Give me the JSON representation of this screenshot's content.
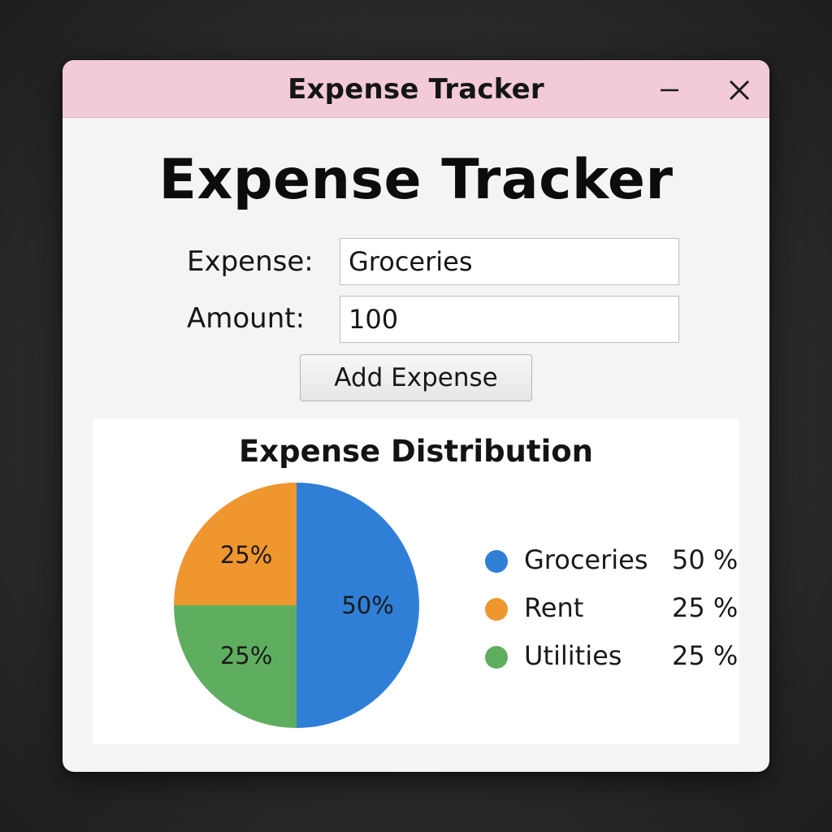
{
  "window": {
    "title": "Expense Tracker",
    "titlebar_color": "#f2cad8",
    "controls": [
      "minimize-icon",
      "close-icon"
    ]
  },
  "main": {
    "heading": "Expense Tracker",
    "expense_label": "Expense:",
    "expense_value": "Groceries",
    "amount_label": "Amount:",
    "amount_value": "100",
    "add_button_label": "Add Expense"
  },
  "chart_data": {
    "type": "pie",
    "title": "Expense Distribution",
    "categories": [
      "Groceries",
      "Rent",
      "Utilities"
    ],
    "values": [
      50,
      25,
      25
    ],
    "slice_labels": [
      "50%",
      "25%",
      "25%"
    ],
    "legend_values": [
      "50 %",
      "25 %",
      "25 %"
    ],
    "colors": [
      "#2f7fd6",
      "#f0962f",
      "#5fae5f"
    ],
    "legend_placement": "right"
  }
}
